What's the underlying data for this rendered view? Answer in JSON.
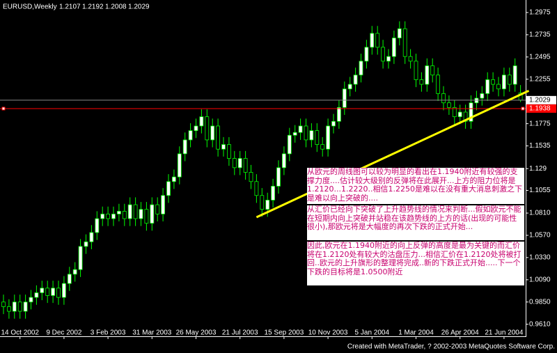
{
  "chart_data": {
    "type": "candlestick",
    "symbol": "EURUSD,Weekly",
    "categories": [
      null,
      null,
      null,
      "14 Oct 2002",
      null,
      null,
      null,
      null,
      null,
      null,
      null,
      "9 Dec 2002",
      null,
      null,
      null,
      null,
      null,
      null,
      null,
      "3 Feb 2003",
      null,
      null,
      null,
      null,
      null,
      null,
      null,
      "31 Mar 2003",
      null,
      null,
      null,
      null,
      null,
      null,
      null,
      "26 May 2003",
      null,
      null,
      null,
      null,
      null,
      null,
      null,
      "21 Jul 2003",
      null,
      null,
      null,
      null,
      null,
      null,
      null,
      "15 Sep 2003",
      null,
      null,
      null,
      null,
      null,
      null,
      null,
      "10 Nov 2003",
      null,
      null,
      null,
      null,
      null,
      null,
      null,
      "5 Jan 2004",
      null,
      null,
      null,
      null,
      null,
      null,
      null,
      "1 Mar 2004",
      null,
      null,
      null,
      null,
      null,
      null,
      null,
      "26 Apr 2004",
      null,
      null,
      null,
      null,
      null,
      null,
      null,
      "21 Jun 2004",
      null,
      null,
      null
    ],
    "open": [
      0.985,
      0.98,
      0.975,
      0.985,
      0.975,
      0.985,
      0.99,
      0.995,
      1.0,
      0.992,
      1.0,
      0.99,
      1.005,
      1.015,
      1.02,
      1.045,
      1.05,
      1.06,
      1.075,
      1.08,
      1.075,
      1.08,
      1.083,
      1.075,
      1.09,
      1.075,
      1.085,
      1.07,
      1.09,
      1.08,
      1.1,
      1.115,
      1.12,
      1.145,
      1.16,
      1.17,
      1.175,
      1.185,
      1.16,
      1.175,
      1.15,
      1.155,
      1.14,
      1.13,
      1.14,
      1.125,
      1.115,
      1.1,
      1.085,
      1.095,
      1.11,
      1.13,
      1.145,
      1.165,
      1.168,
      1.175,
      1.16,
      1.17,
      1.155,
      1.15,
      1.175,
      1.18,
      1.195,
      1.215,
      1.22,
      1.23,
      1.245,
      1.26,
      1.275,
      1.26,
      1.245,
      1.25,
      1.27,
      1.28,
      1.25,
      1.245,
      1.225,
      1.22,
      1.24,
      1.23,
      1.21,
      1.2,
      1.195,
      1.185,
      1.19,
      1.18,
      1.2,
      1.205,
      1.21,
      1.225,
      1.22,
      1.215,
      1.23,
      1.22,
      1.2107
    ],
    "high": [
      0.993,
      0.988,
      0.993,
      0.993,
      0.993,
      0.998,
      1.003,
      1.008,
      1.008,
      1.008,
      1.008,
      1.013,
      1.023,
      1.028,
      1.053,
      1.058,
      1.068,
      1.083,
      1.088,
      1.088,
      1.088,
      1.091,
      1.091,
      1.098,
      1.098,
      1.093,
      1.093,
      1.098,
      1.098,
      1.108,
      1.123,
      1.128,
      1.153,
      1.168,
      1.178,
      1.183,
      1.193,
      1.193,
      1.183,
      1.183,
      1.163,
      1.163,
      1.148,
      1.148,
      1.148,
      1.133,
      1.123,
      1.108,
      1.103,
      1.118,
      1.138,
      1.153,
      1.173,
      1.176,
      1.183,
      1.183,
      1.178,
      1.178,
      1.163,
      1.183,
      1.188,
      1.203,
      1.223,
      1.228,
      1.238,
      1.253,
      1.268,
      1.283,
      1.283,
      1.268,
      1.258,
      1.278,
      1.288,
      1.288,
      1.258,
      1.253,
      1.233,
      1.248,
      1.248,
      1.238,
      1.218,
      1.208,
      1.203,
      1.198,
      1.198,
      1.208,
      1.213,
      1.218,
      1.233,
      1.233,
      1.228,
      1.238,
      1.238,
      1.248,
      1.2192
    ],
    "low": [
      0.972,
      0.967,
      0.967,
      0.967,
      0.967,
      0.977,
      0.982,
      0.987,
      0.984,
      0.984,
      0.982,
      0.982,
      0.997,
      1.007,
      1.012,
      1.037,
      1.042,
      1.052,
      1.067,
      1.067,
      1.067,
      1.072,
      1.067,
      1.067,
      1.067,
      1.067,
      1.062,
      1.062,
      1.072,
      1.072,
      1.092,
      1.107,
      1.112,
      1.137,
      1.152,
      1.162,
      1.167,
      1.152,
      1.152,
      1.142,
      1.142,
      1.132,
      1.122,
      1.122,
      1.117,
      1.107,
      1.092,
      1.077,
      1.077,
      1.087,
      1.102,
      1.122,
      1.137,
      1.157,
      1.16,
      1.152,
      1.152,
      1.147,
      1.142,
      1.142,
      1.167,
      1.172,
      1.187,
      1.207,
      1.212,
      1.222,
      1.237,
      1.252,
      1.252,
      1.237,
      1.237,
      1.242,
      1.262,
      1.242,
      1.237,
      1.217,
      1.212,
      1.212,
      1.222,
      1.202,
      1.192,
      1.187,
      1.177,
      1.177,
      1.172,
      1.172,
      1.192,
      1.197,
      1.202,
      1.212,
      1.207,
      1.207,
      1.212,
      1.212,
      1.2008
    ],
    "close": [
      0.98,
      0.975,
      0.985,
      0.975,
      0.985,
      0.99,
      0.995,
      1.0,
      0.992,
      1.0,
      0.99,
      1.005,
      1.015,
      1.02,
      1.045,
      1.05,
      1.06,
      1.075,
      1.08,
      1.075,
      1.08,
      1.083,
      1.075,
      1.09,
      1.075,
      1.085,
      1.07,
      1.09,
      1.08,
      1.1,
      1.115,
      1.12,
      1.145,
      1.16,
      1.17,
      1.175,
      1.185,
      1.16,
      1.175,
      1.15,
      1.155,
      1.14,
      1.13,
      1.14,
      1.125,
      1.115,
      1.1,
      1.085,
      1.095,
      1.11,
      1.13,
      1.145,
      1.165,
      1.168,
      1.175,
      1.16,
      1.17,
      1.155,
      1.15,
      1.175,
      1.18,
      1.195,
      1.215,
      1.22,
      1.23,
      1.245,
      1.26,
      1.275,
      1.26,
      1.245,
      1.25,
      1.27,
      1.28,
      1.25,
      1.245,
      1.225,
      1.22,
      1.24,
      1.23,
      1.21,
      1.2,
      1.195,
      1.185,
      1.19,
      1.18,
      1.2,
      1.205,
      1.21,
      1.225,
      1.22,
      1.215,
      1.23,
      1.22,
      1.24,
      1.2029
    ],
    "up_color": "#ffffff",
    "down_color": "#000000",
    "wick_color": "#00ff00",
    "ylim": [
      0.948,
      1.311
    ],
    "yticks": [
      1.2975,
      1.2735,
      1.2495,
      1.2255,
      1.1775,
      1.1535,
      1.129,
      1.1055,
      {
        "value": 1.081,
        "label": "1.0810"
      },
      {
        "value": 1.057,
        "label": "1.0570"
      },
      {
        "value": 1.033,
        "label": "1.0330"
      },
      {
        "value": 1.009,
        "label": "1.0090"
      },
      {
        "value": 0.985,
        "label": "0.9850"
      },
      {
        "value": 0.961,
        "label": "0.9610"
      }
    ],
    "price_line": {
      "value": 1.2029,
      "color": "#8a8a8a"
    },
    "level_line": {
      "value": 1.1938,
      "color": "#ff0000"
    },
    "trendline": {
      "color": "#ffff00",
      "start": [
        46,
        1.0765
      ],
      "end": [
        95.5,
        1.213
      ]
    },
    "annotations": [
      "从欧元的周线图可以较为明显的看出在1.1940附近有较强的支撑力度....估计较大级别的反弹将在此展开...上方的阻力位将是1.2120...1.2220..相信1.2250是难以在没有重大消息刺激之下是难以向上突破的....",
      "从汇价已经向下突破了上升趋势线的情况来判断...假如欧元不能在短期内向上突破并站稳在该趋势线的上方的话(出现的可能性很小),那欧元将是大幅度的再次下跌的正式开始...",
      "因此,欧元在1.1940附近的向上反弹的高度是最为关键的而汇价将在1.2120处有较大的沽盘压力...相信汇价在1.2120处将被打回..欧元的上升旗形的整理将完成..新的下跌正式开始.....下一个下跌的目标将是1.0500附近"
    ]
  },
  "footer": "Created with MetaTrader, ? 2002-2003 MetaQuotes Software Corp."
}
